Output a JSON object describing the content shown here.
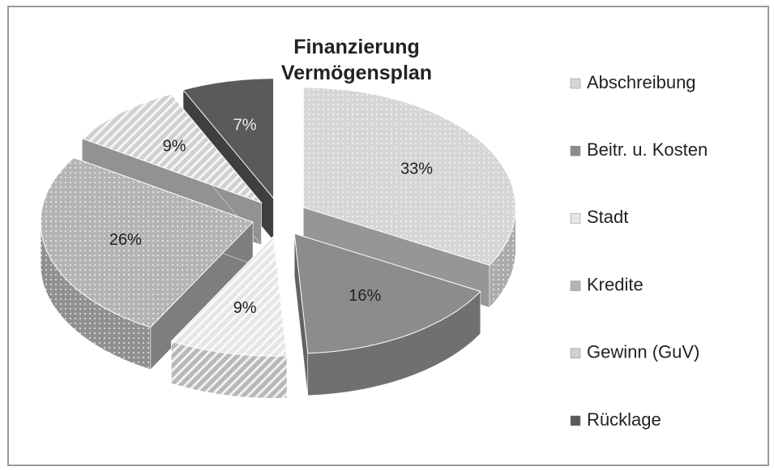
{
  "chart_data": {
    "type": "pie",
    "title": "Finanzierung Vermögensplan",
    "categories": [
      "Abschreibung",
      "Beitr. u. Kosten",
      "Stadt",
      "Kredite",
      "Gewinn (GuV)",
      "Rücklage"
    ],
    "values": [
      33,
      16,
      9,
      26,
      9,
      7
    ],
    "value_labels": [
      "33%",
      "16%",
      "9%",
      "26%",
      "9%",
      "7%"
    ],
    "colors": [
      "#d6d6d6",
      "#8c8c8c",
      "#e6e6e6",
      "#b4b4b4",
      "#d0d0d0",
      "#5a5a5a"
    ],
    "legend": "right"
  }
}
